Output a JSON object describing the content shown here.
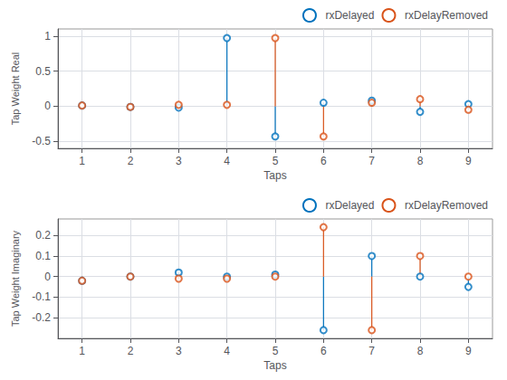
{
  "chart_data": [
    {
      "type": "stem",
      "x": [
        1,
        2,
        3,
        4,
        5,
        6,
        7,
        8,
        9
      ],
      "xlabel": "Taps",
      "ylabel": "Tap Weight Real",
      "xlim": [
        0.5,
        9.5
      ],
      "xticks": [
        1,
        2,
        3,
        4,
        5,
        6,
        7,
        8,
        9
      ],
      "ylim": [
        -0.6,
        1.1
      ],
      "yticks": [
        -0.5,
        0,
        0.5,
        1
      ],
      "grid": true,
      "legend": "upper right",
      "marker": "o",
      "series": [
        {
          "name": "rxDelayed",
          "color": "#0072BD",
          "values": [
            0.01,
            -0.01,
            -0.02,
            0.97,
            -0.43,
            0.05,
            0.08,
            -0.08,
            0.03
          ]
        },
        {
          "name": "rxDelayRemoved",
          "color": "#D95319",
          "values": [
            0.01,
            -0.01,
            0.02,
            0.02,
            0.97,
            -0.43,
            0.05,
            0.1,
            -0.05
          ]
        }
      ]
    },
    {
      "type": "stem",
      "x": [
        1,
        2,
        3,
        4,
        5,
        6,
        7,
        8,
        9
      ],
      "xlabel": "Taps",
      "ylabel": "Tap Weight Imaginary",
      "xlim": [
        0.5,
        9.5
      ],
      "xticks": [
        1,
        2,
        3,
        4,
        5,
        6,
        7,
        8,
        9
      ],
      "ylim": [
        -0.3,
        0.28
      ],
      "yticks": [
        -0.2,
        -0.1,
        0,
        0.1,
        0.2
      ],
      "grid": true,
      "legend": "upper right",
      "marker": "o",
      "series": [
        {
          "name": "rxDelayed",
          "color": "#0072BD",
          "values": [
            -0.02,
            0.0,
            0.02,
            0.0,
            0.01,
            -0.26,
            0.1,
            0.0,
            -0.05
          ]
        },
        {
          "name": "rxDelayRemoved",
          "color": "#D95319",
          "values": [
            -0.02,
            0.0,
            -0.01,
            -0.01,
            0.0,
            0.24,
            -0.26,
            0.1,
            0.0
          ]
        }
      ]
    }
  ]
}
